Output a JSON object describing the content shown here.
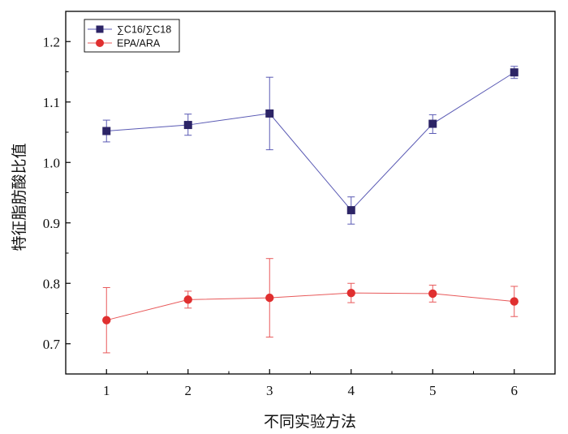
{
  "chart_data": {
    "type": "line",
    "x": [
      1,
      2,
      3,
      4,
      5,
      6
    ],
    "xlim": [
      0.5,
      6.5
    ],
    "ylim": [
      0.65,
      1.25
    ],
    "xticks": [
      1,
      2,
      3,
      4,
      5,
      6
    ],
    "yticks": [
      0.7,
      0.8,
      0.9,
      1.0,
      1.1,
      1.2
    ],
    "ytick_labels": [
      "0.7",
      "0.8",
      "0.9",
      "1.0",
      "1.1",
      "1.2"
    ],
    "xlabel": "不同实验方法",
    "ylabel": "特征脂肪酸比值",
    "grid": false,
    "legend_position": "top-left",
    "series": [
      {
        "name": "∑C16/∑C18",
        "marker": "square",
        "color": "#5a5ab4",
        "marker_color": "#2c2466",
        "values": [
          1.052,
          1.062,
          1.081,
          0.921,
          1.064,
          1.149
        ],
        "err_low": [
          1.034,
          1.045,
          1.021,
          0.898,
          1.048,
          1.139
        ],
        "err_high": [
          1.07,
          1.08,
          1.141,
          0.943,
          1.079,
          1.159
        ]
      },
      {
        "name": "EPA/ARA",
        "marker": "circle",
        "color": "#e8595a",
        "marker_color": "#e02f2f",
        "values": [
          0.739,
          0.773,
          0.776,
          0.784,
          0.783,
          0.77
        ],
        "err_low": [
          0.685,
          0.759,
          0.711,
          0.768,
          0.769,
          0.745
        ],
        "err_high": [
          0.793,
          0.787,
          0.841,
          0.8,
          0.797,
          0.795
        ]
      }
    ]
  }
}
